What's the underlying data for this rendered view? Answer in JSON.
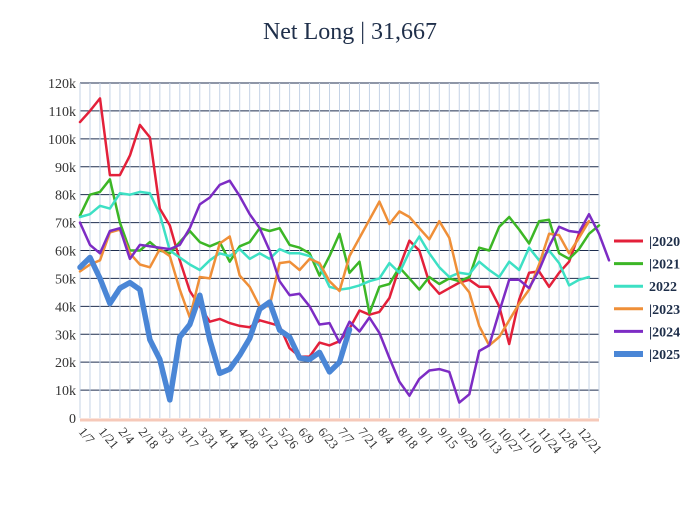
{
  "chart_data": {
    "type": "line",
    "title": "Net Long | 31,667",
    "xlabel": "",
    "ylabel": "",
    "ylim": [
      0,
      120000
    ],
    "yticks": [
      0,
      10000,
      20000,
      30000,
      40000,
      50000,
      60000,
      70000,
      80000,
      90000,
      100000,
      110000,
      120000
    ],
    "ytick_labels": [
      "0",
      "10k",
      "20k",
      "30k",
      "40k",
      "50k",
      "60k",
      "70k",
      "80k",
      "90k",
      "100k",
      "110k",
      "120k"
    ],
    "x_tick_labels": [
      "1/7",
      "1/21",
      "2/4",
      "2/18",
      "3/3",
      "3/17",
      "3/31",
      "4/14",
      "4/28",
      "5/12",
      "5/26",
      "6/9",
      "6/23",
      "7/7",
      "7/21",
      "8/4",
      "8/18",
      "9/1",
      "9/15",
      "9/29",
      "10/13",
      "10/27",
      "11/10",
      "11/24",
      "12/8",
      "12/21"
    ],
    "x_tick_step": 2,
    "grid": true,
    "legend_position": "right",
    "series": [
      {
        "name": "|2020",
        "color": "#e3203a",
        "emphasis": false,
        "values": [
          106000,
          110000,
          114500,
          87000,
          87000,
          94000,
          105000,
          100500,
          75000,
          69000,
          56500,
          45500,
          40000,
          34500,
          35500,
          34000,
          33000,
          32500,
          35000,
          34000,
          33000,
          25000,
          22000,
          22000,
          27000,
          26000,
          27500,
          32000,
          38500,
          37000,
          38000,
          43000,
          54000,
          63500,
          60000,
          48500,
          44500,
          46500,
          48500,
          49500,
          47000,
          47000,
          40000,
          26500,
          42500,
          52000,
          52500,
          47000,
          52000,
          56000,
          66000,
          70500
        ]
      },
      {
        "name": "|2021",
        "color": "#3cb626",
        "emphasis": false,
        "values": [
          72500,
          80000,
          81000,
          85500,
          70000,
          60000,
          60000,
          63000,
          60000,
          59000,
          63000,
          67000,
          63000,
          61500,
          63000,
          56000,
          61500,
          63000,
          68000,
          67000,
          68000,
          62000,
          61000,
          59000,
          51000,
          58000,
          66000,
          52000,
          56000,
          37500,
          47000,
          48000,
          54000,
          50000,
          46000,
          50500,
          48000,
          50000,
          49000,
          50500,
          61000,
          60000,
          68500,
          72000,
          67500,
          62500,
          70500,
          71000,
          59000,
          57000,
          60500,
          66000,
          69000
        ]
      },
      {
        "name": "2022",
        "color": "#3de0c4",
        "emphasis": false,
        "values": [
          72000,
          73000,
          76000,
          75000,
          80500,
          80000,
          81000,
          80500,
          73000,
          60000,
          57500,
          55000,
          53000,
          56500,
          59000,
          58000,
          60500,
          57000,
          59000,
          57000,
          60500,
          59000,
          59000,
          58000,
          54500,
          47000,
          46000,
          46500,
          47500,
          49000,
          50000,
          55500,
          52000,
          59500,
          65000,
          59000,
          54000,
          50500,
          52000,
          51500,
          56000,
          53000,
          50500,
          56000,
          53000,
          61000,
          56500,
          60000,
          55500,
          47500,
          49500,
          50500
        ]
      },
      {
        "name": "|2023",
        "color": "#ef8f38",
        "emphasis": false,
        "values": [
          52500,
          55000,
          56500,
          66500,
          67500,
          59000,
          55000,
          54000,
          60500,
          58000,
          46000,
          36000,
          50500,
          50000,
          62500,
          65000,
          51000,
          47000,
          40000,
          40000,
          55500,
          56000,
          53000,
          57000,
          55500,
          49000,
          45500,
          58000,
          64500,
          71000,
          77500,
          69500,
          74000,
          72000,
          68000,
          64000,
          70500,
          64500,
          49500,
          45000,
          33000,
          26000,
          29000,
          35000,
          41000,
          46000,
          55000,
          66000,
          65500,
          59000,
          64500,
          70500
        ]
      },
      {
        "name": "|2024",
        "color": "#7d2cc4",
        "emphasis": false,
        "values": [
          70000,
          62000,
          59000,
          67000,
          68000,
          57000,
          62000,
          61500,
          61000,
          60500,
          62000,
          68000,
          76500,
          79000,
          83500,
          85000,
          79500,
          73000,
          68000,
          60000,
          49000,
          44000,
          44500,
          40000,
          33500,
          34000,
          27000,
          34500,
          31000,
          36000,
          30500,
          21500,
          13000,
          8000,
          14000,
          17000,
          17500,
          16500,
          5500,
          8500,
          24000,
          26000,
          38000,
          49500,
          49500,
          46500,
          53000,
          61500,
          68500,
          67000,
          66500,
          73000,
          66000,
          56500
        ]
      },
      {
        "name": "|2025",
        "color": "#4a86d6",
        "emphasis": true,
        "values": [
          54000,
          57500,
          50000,
          41000,
          46500,
          48500,
          46000,
          28000,
          21000,
          6500,
          29000,
          33500,
          44000,
          28000,
          16000,
          17500,
          22500,
          28500,
          39000,
          41500,
          31500,
          29000,
          21500,
          21000,
          23500,
          16500,
          20000,
          31667
        ]
      }
    ]
  }
}
